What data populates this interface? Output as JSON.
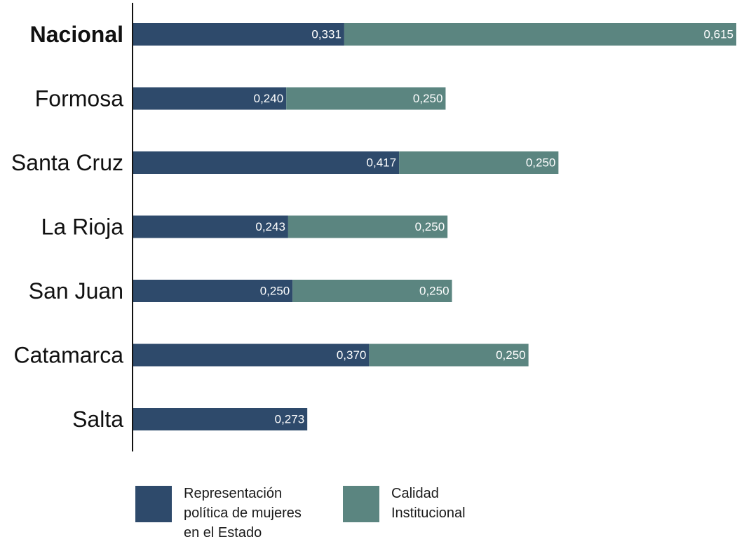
{
  "chart_data": {
    "type": "bar",
    "orientation": "horizontal",
    "stacked": true,
    "categories": [
      "Nacional",
      "Formosa",
      "Santa Cruz",
      "La Rioja",
      "San Juan",
      "Catamarca",
      "Salta"
    ],
    "bold_categories": [
      "Nacional"
    ],
    "series": [
      {
        "name": "Representación\npolítica de mujeres\nen el Estado",
        "color": "#2e4a6b",
        "values": [
          0.331,
          0.24,
          0.417,
          0.243,
          0.25,
          0.37,
          0.273
        ],
        "value_labels": [
          "0,331",
          "0,240",
          "0,417",
          "0,243",
          "0,250",
          "0,370",
          "0,273"
        ]
      },
      {
        "name": "Calidad\nInstitucional",
        "color": "#5b8580",
        "values": [
          0.615,
          0.25,
          0.25,
          0.25,
          0.25,
          0.25,
          null
        ],
        "value_labels": [
          "0,615",
          "0,250",
          "0,250",
          "0,250",
          "0,250",
          "0,250",
          null
        ]
      }
    ],
    "xlim": [
      0,
      0.946
    ],
    "grid": false,
    "legend_position": "bottom"
  }
}
